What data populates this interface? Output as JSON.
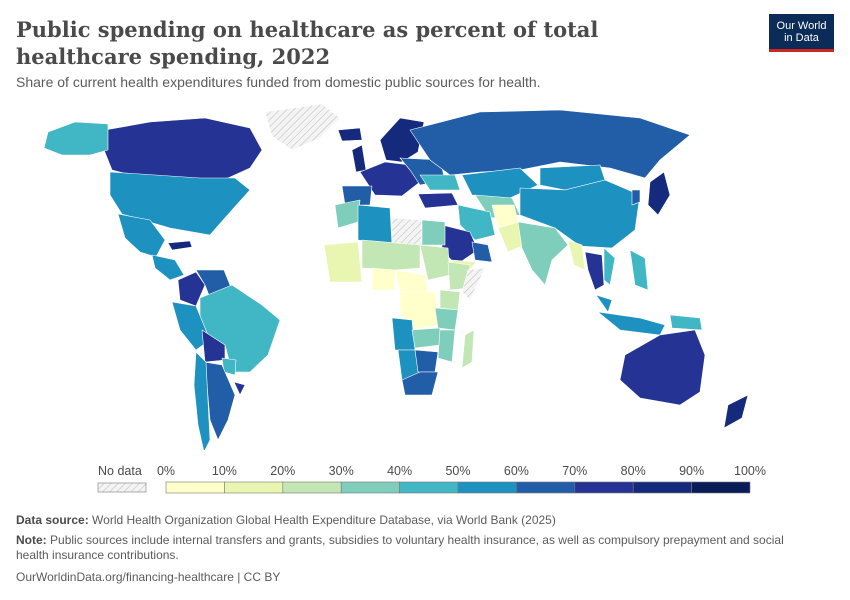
{
  "header": {
    "title": "Public spending on healthcare as percent of total healthcare spending, 2022",
    "subtitle": "Share of current health expenditures funded from domestic public sources for health.",
    "logo_line1": "Our World",
    "logo_line2": "in Data"
  },
  "legend": {
    "no_data_label": "No data",
    "ticks": [
      "0%",
      "10%",
      "20%",
      "30%",
      "40%",
      "50%",
      "60%",
      "70%",
      "80%",
      "90%",
      "100%"
    ],
    "colors": [
      "#ffffcc",
      "#e9f6b2",
      "#c2e6b4",
      "#7fcdbb",
      "#41b6c4",
      "#1d91c0",
      "#225ea8",
      "#253494",
      "#152a7d",
      "#081d58"
    ]
  },
  "map_data": {
    "type": "choropleth",
    "year": "2022",
    "regions": [
      {
        "name": "Canada",
        "band": 7
      },
      {
        "name": "Alaska",
        "band": 4
      },
      {
        "name": "United States",
        "band": 5
      },
      {
        "name": "Greenland",
        "band": null
      },
      {
        "name": "Mexico",
        "band": 5
      },
      {
        "name": "Cuba",
        "band": 8
      },
      {
        "name": "Central America",
        "band": 5
      },
      {
        "name": "Colombia",
        "band": 7
      },
      {
        "name": "Venezuela",
        "band": 6
      },
      {
        "name": "Brazil",
        "band": 4
      },
      {
        "name": "Peru",
        "band": 5
      },
      {
        "name": "Bolivia",
        "band": 7
      },
      {
        "name": "Paraguay",
        "band": 4
      },
      {
        "name": "Argentina",
        "band": 6
      },
      {
        "name": "Chile",
        "band": 5
      },
      {
        "name": "Uruguay",
        "band": 7
      },
      {
        "name": "Iceland",
        "band": 8
      },
      {
        "name": "United Kingdom",
        "band": 8
      },
      {
        "name": "Scandinavia",
        "band": 8
      },
      {
        "name": "Western Europe",
        "band": 7
      },
      {
        "name": "Spain",
        "band": 6
      },
      {
        "name": "Eastern Europe",
        "band": 6
      },
      {
        "name": "Ukraine",
        "band": 4
      },
      {
        "name": "Russia",
        "band": 6
      },
      {
        "name": "Kazakhstan",
        "band": 5
      },
      {
        "name": "Central Asia",
        "band": 3
      },
      {
        "name": "Mongolia",
        "band": 5
      },
      {
        "name": "China",
        "band": 5
      },
      {
        "name": "Japan",
        "band": 8
      },
      {
        "name": "Korea",
        "band": 6
      },
      {
        "name": "Turkey",
        "band": 7
      },
      {
        "name": "Iran",
        "band": 4
      },
      {
        "name": "Afghanistan",
        "band": 0
      },
      {
        "name": "Pakistan",
        "band": 1
      },
      {
        "name": "India",
        "band": 3
      },
      {
        "name": "Myanmar",
        "band": 1
      },
      {
        "name": "Thailand",
        "band": 7
      },
      {
        "name": "Vietnam",
        "band": 4
      },
      {
        "name": "Malaysia",
        "band": 5
      },
      {
        "name": "Indonesia",
        "band": 5
      },
      {
        "name": "Philippines",
        "band": 4
      },
      {
        "name": "Saudi Arabia",
        "band": 7
      },
      {
        "name": "Gulf States",
        "band": 6
      },
      {
        "name": "Yemen",
        "band": 1
      },
      {
        "name": "Morocco",
        "band": 3
      },
      {
        "name": "Algeria",
        "band": 5
      },
      {
        "name": "Libya",
        "band": null
      },
      {
        "name": "Egypt",
        "band": 3
      },
      {
        "name": "Sudan",
        "band": 2
      },
      {
        "name": "Ethiopia",
        "band": 2
      },
      {
        "name": "Somalia",
        "band": null
      },
      {
        "name": "West Africa",
        "band": 1
      },
      {
        "name": "Sahel",
        "band": 2
      },
      {
        "name": "Nigeria",
        "band": 0
      },
      {
        "name": "Central Africa",
        "band": 0
      },
      {
        "name": "DR Congo",
        "band": 0
      },
      {
        "name": "Kenya",
        "band": 2
      },
      {
        "name": "Tanzania",
        "band": 3
      },
      {
        "name": "Angola",
        "band": 5
      },
      {
        "name": "Zambia",
        "band": 3
      },
      {
        "name": "Mozambique",
        "band": 3
      },
      {
        "name": "Namibia",
        "band": 5
      },
      {
        "name": "Botswana",
        "band": 6
      },
      {
        "name": "South Africa",
        "band": 6
      },
      {
        "name": "Madagascar",
        "band": 2
      },
      {
        "name": "Australia",
        "band": 7
      },
      {
        "name": "New Zealand",
        "band": 8
      },
      {
        "name": "Papua New Guinea",
        "band": 4
      }
    ]
  },
  "footer": {
    "source_label": "Data source:",
    "source_text": "World Health Organization Global Health Expenditure Database, via World Bank (2025)",
    "note_label": "Note:",
    "note_text": "Public sources include internal transfers and grants, subsidies to voluntary health insurance, as well as compulsory prepayment and social health insurance contributions.",
    "url_text": "OurWorldinData.org/financing-healthcare | CC BY"
  }
}
